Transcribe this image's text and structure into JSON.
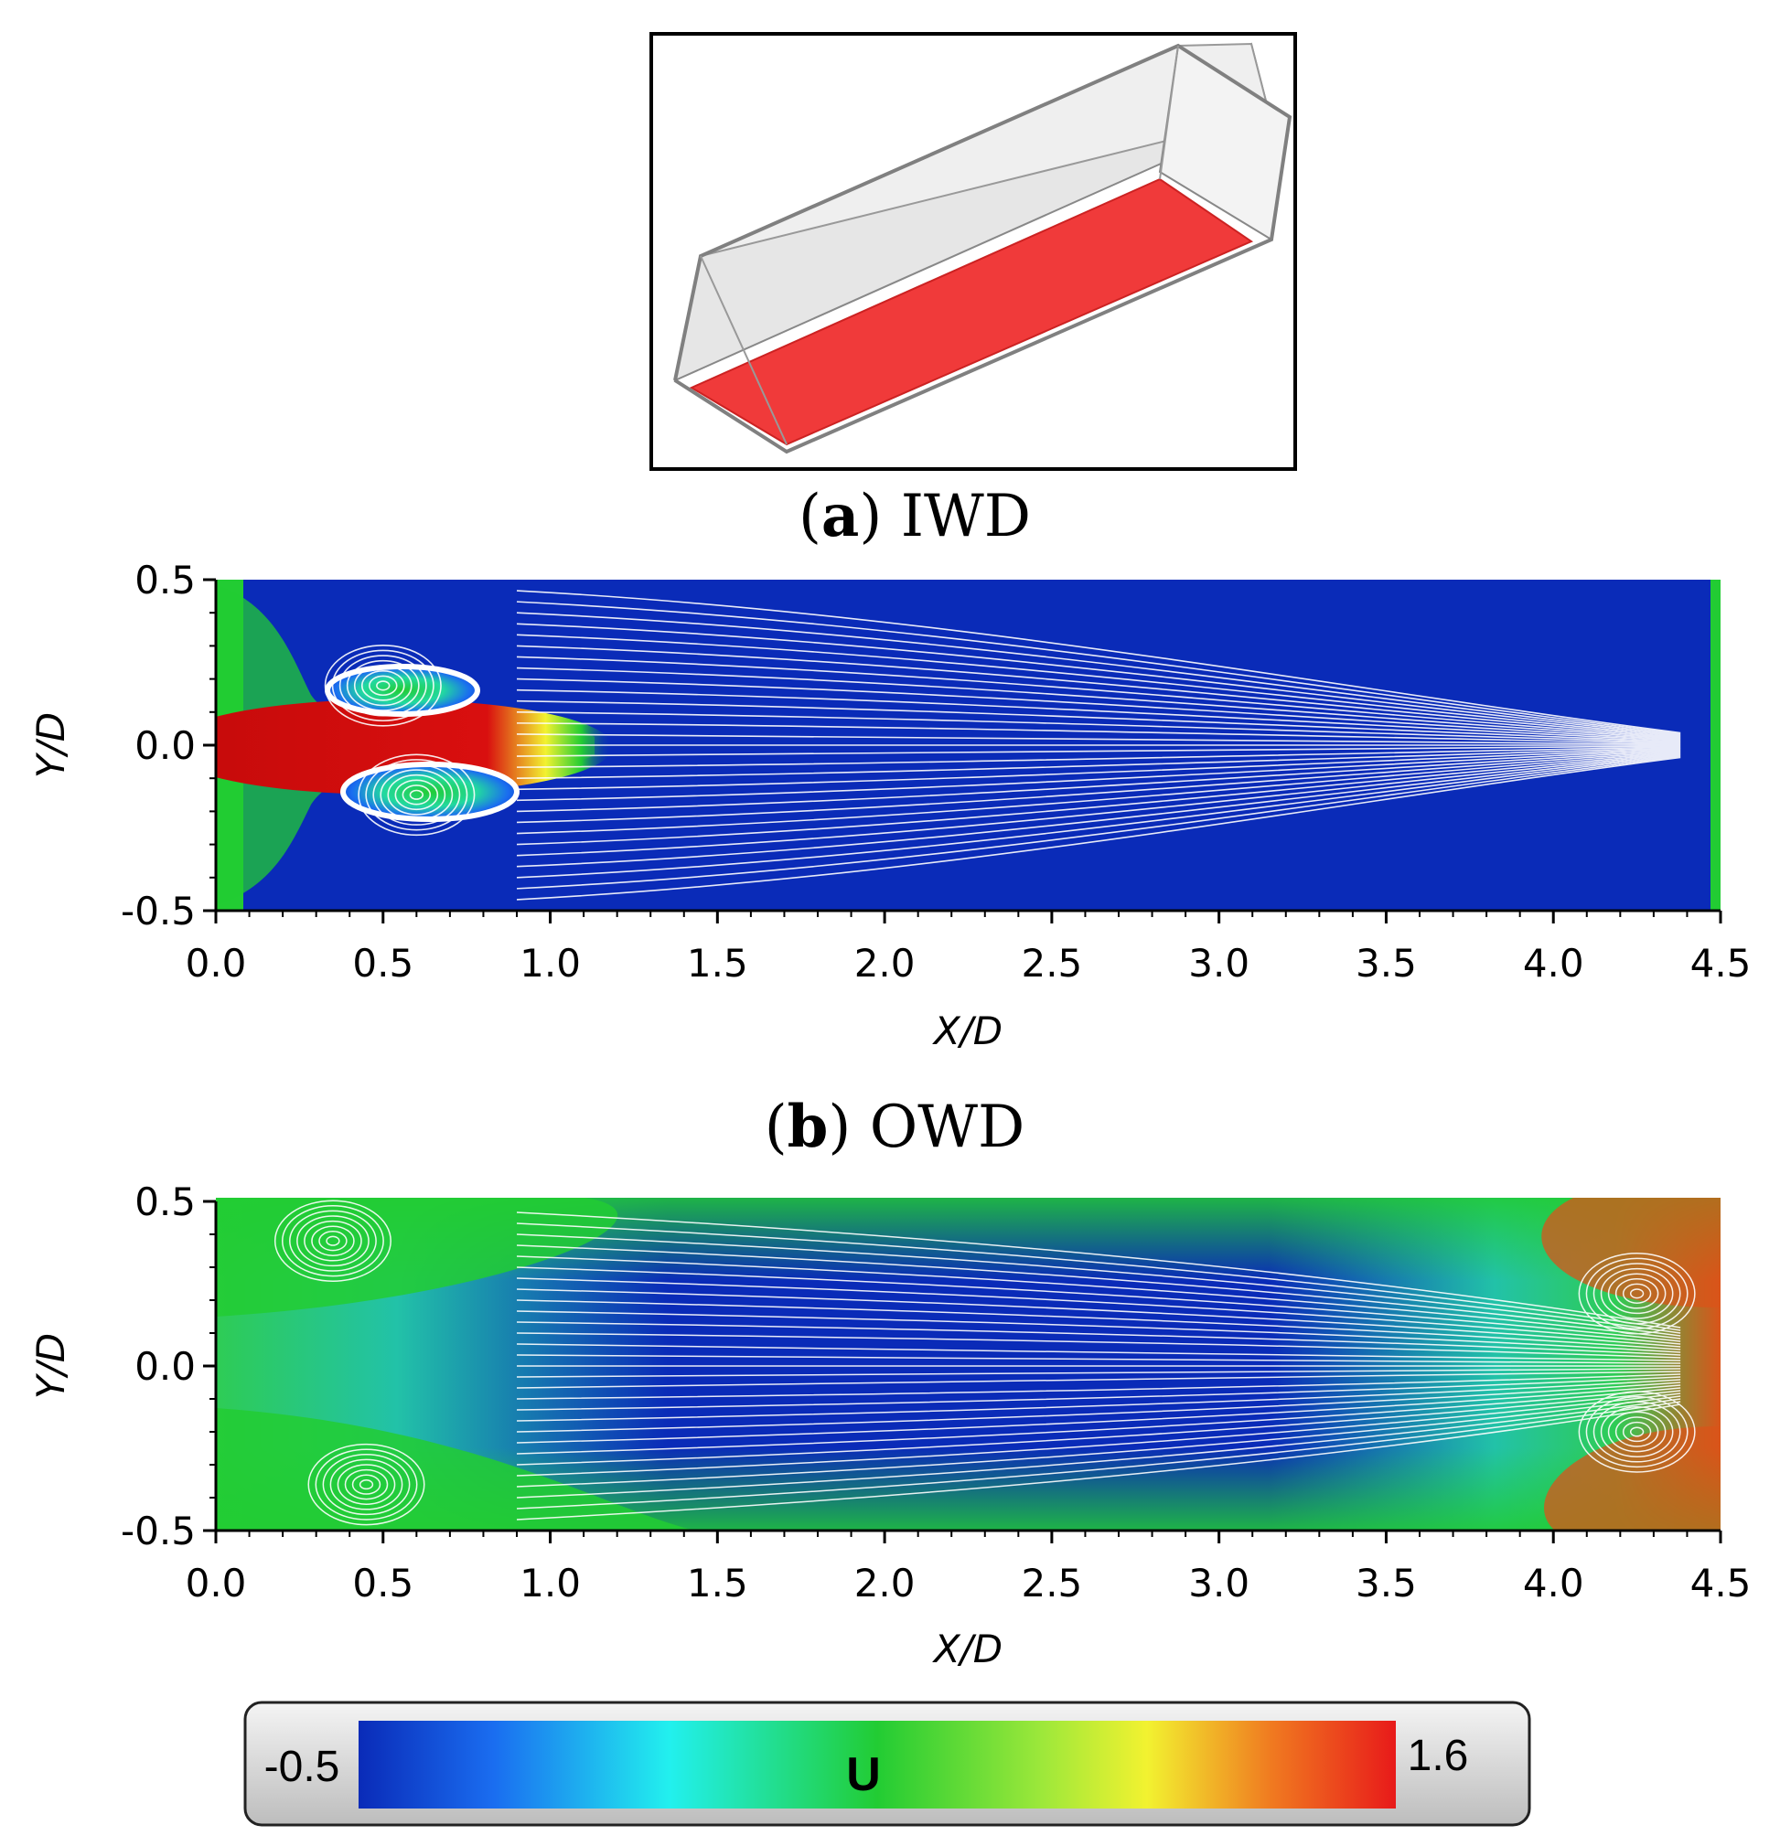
{
  "colors": {
    "blue": "#0a2bb8",
    "cyan": "#22f0ee",
    "green": "#22cc33",
    "yellow": "#f2f230",
    "red": "#d90f0f",
    "streamline": "#ffffff",
    "box_fill": "#e8e8e8",
    "wall": "#f03a3a"
  },
  "figure": {
    "panel_a_caption": {
      "letter": "a",
      "text": "IWD"
    },
    "panel_b_caption": {
      "letter": "b",
      "text": "OWD"
    },
    "inset_label": "3D channel with heated bottom wall"
  },
  "chart_data": [
    {
      "type": "heatmap",
      "title": "",
      "xlabel": "X/D",
      "ylabel": "Y/D",
      "xlim": [
        0.0,
        4.5
      ],
      "ylim": [
        -0.5,
        0.5
      ],
      "xticks": [
        "0.0",
        "0.5",
        "1.0",
        "1.5",
        "2.0",
        "2.5",
        "3.0",
        "3.5",
        "4.0",
        "4.5"
      ],
      "yticks": [
        "0.5",
        "0.0",
        "-0.5"
      ],
      "field": "U",
      "features": [
        {
          "kind": "jet-core",
          "x_start": 0.0,
          "x_end": 1.15,
          "y": 0.0,
          "value": 1.6
        },
        {
          "kind": "vortex",
          "x": 0.5,
          "y": 0.18
        },
        {
          "kind": "vortex",
          "x": 0.6,
          "y": -0.15
        }
      ]
    },
    {
      "type": "heatmap",
      "title": "",
      "xlabel": "X/D",
      "ylabel": "Y/D",
      "xlim": [
        0.0,
        4.5
      ],
      "ylim": [
        -0.5,
        0.5
      ],
      "xticks": [
        "0.0",
        "0.5",
        "1.0",
        "1.5",
        "2.0",
        "2.5",
        "3.0",
        "3.5",
        "4.0",
        "4.5"
      ],
      "yticks": [
        "0.5",
        "0.0",
        "-0.5"
      ],
      "field": "U",
      "features": [
        {
          "kind": "vortex",
          "x": 0.35,
          "y": 0.38
        },
        {
          "kind": "vortex",
          "x": 0.45,
          "y": -0.36
        },
        {
          "kind": "vortex",
          "x": 4.25,
          "y": 0.22
        },
        {
          "kind": "vortex",
          "x": 4.25,
          "y": -0.2
        }
      ]
    }
  ],
  "colorbar": {
    "label": "U",
    "min": "-0.5",
    "max": "1.6",
    "stops": [
      "#0a2bb8",
      "#1a6df0",
      "#22f0ee",
      "#22cc33",
      "#9ee83a",
      "#f2f230",
      "#f07a20",
      "#e81a1a"
    ]
  }
}
